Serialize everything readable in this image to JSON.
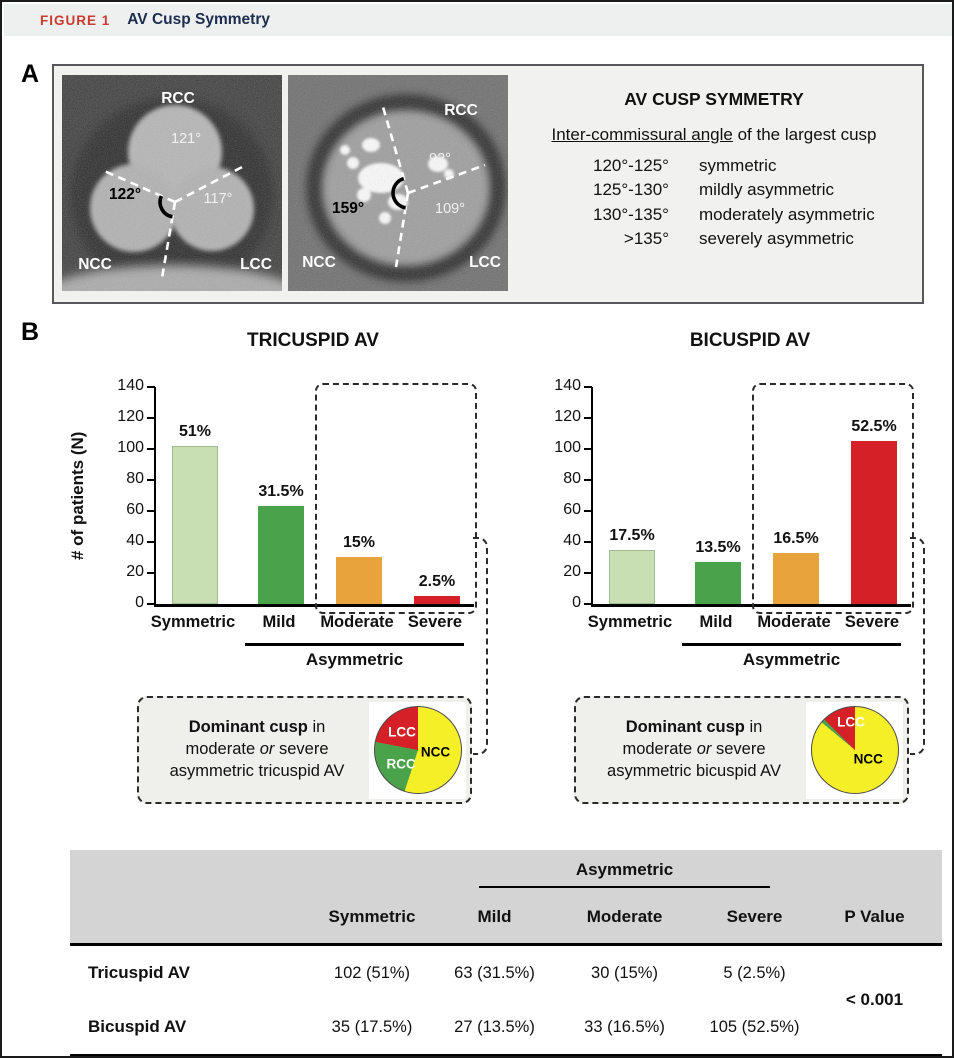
{
  "figure_header": {
    "label": "FIGURE 1",
    "title": "AV Cusp Symmetry"
  },
  "colors": {
    "figure_label_red": "#cb3a2f",
    "figure_title_navy": "#1e2c4f",
    "header_band": "#edf0ee",
    "panel_box_bg": "#f1f1ef",
    "table_header_bg": "#d4d4d4",
    "light_green": "#c7dfb2",
    "green": "#4aa34a",
    "orange": "#e8a33c",
    "red": "#d42026",
    "pie_yellow": "#f5ef27"
  },
  "panel_a": {
    "label": "A",
    "ct_images": [
      {
        "name": "tricuspid-ct",
        "top_label": "RCC",
        "bottom_left_label": "NCC",
        "bottom_right_label": "LCC",
        "angle_top": "121°",
        "angle_left": "122°",
        "angle_right": "117°"
      },
      {
        "name": "bicuspid-ct",
        "top_label": "RCC",
        "bottom_left_label": "NCC",
        "bottom_right_label": "LCC",
        "angle_top": "92°",
        "angle_left": "159°",
        "angle_right": "109°"
      }
    ],
    "definition": {
      "title": "AV CUSP SYMMETRY",
      "lead_underlined": "Inter-commissural angle",
      "lead_rest": " of the largest cusp",
      "rows": [
        {
          "range": "120°-125°",
          "meaning": "symmetric"
        },
        {
          "range": "125°-130°",
          "meaning": "mildly asymmetric"
        },
        {
          "range": "130°-135°",
          "meaning": "moderately asymmetric"
        },
        {
          "range": ">135°",
          "meaning": "severely asymmetric"
        }
      ]
    }
  },
  "panel_b": {
    "label": "B",
    "bracket_label": "Asymmetric"
  },
  "chart_data": [
    {
      "type": "bar",
      "title": "TRICUSPID AV",
      "ylabel": "# of patients (N)",
      "categories": [
        "Symmetric",
        "Mild",
        "Moderate",
        "Severe"
      ],
      "values": [
        102,
        63,
        30,
        5
      ],
      "value_labels": [
        "51%",
        "31.5%",
        "15%",
        "2.5%"
      ],
      "ylim": [
        0,
        140
      ],
      "yticks": [
        0,
        20,
        40,
        60,
        80,
        100,
        120,
        140
      ],
      "bar_colors": [
        "#c7dfb2",
        "#4aa34a",
        "#e8a33c",
        "#d42026"
      ],
      "highlighted_categories": [
        "Moderate",
        "Severe"
      ],
      "group_annotation": "Asymmetric",
      "grid": false
    },
    {
      "type": "bar",
      "title": "BICUSPID AV",
      "ylabel": "",
      "categories": [
        "Symmetric",
        "Mild",
        "Moderate",
        "Severe"
      ],
      "values": [
        35,
        27,
        33,
        105
      ],
      "value_labels": [
        "17.5%",
        "13.5%",
        "16.5%",
        "52.5%"
      ],
      "ylim": [
        0,
        140
      ],
      "yticks": [
        0,
        20,
        40,
        60,
        80,
        100,
        120,
        140
      ],
      "bar_colors": [
        "#c7dfb2",
        "#4aa34a",
        "#e8a33c",
        "#d42026"
      ],
      "highlighted_categories": [
        "Moderate",
        "Severe"
      ],
      "group_annotation": "Asymmetric",
      "grid": false
    },
    {
      "type": "pie",
      "caption_lines": [
        [
          {
            "text": "Dominant cusp",
            "bold": true
          },
          {
            "text": " in"
          }
        ],
        [
          {
            "text": "moderate "
          },
          {
            "text": "or",
            "italic": true
          },
          {
            "text": " severe"
          }
        ],
        [
          {
            "text": "asymmetric tricuspid AV"
          }
        ]
      ],
      "slices": [
        {
          "label": "NCC",
          "value": 55,
          "color": "#f5ef27",
          "label_color": "#000",
          "label_pos": [
            71,
            52
          ]
        },
        {
          "label": "RCC",
          "value": 23,
          "color": "#4aa34a",
          "label_color": "#fff",
          "label_pos": [
            31,
            66
          ]
        },
        {
          "label": "LCC",
          "value": 22,
          "color": "#d42026",
          "label_color": "#fff",
          "label_pos": [
            32,
            29
          ]
        }
      ]
    },
    {
      "type": "pie",
      "caption_lines": [
        [
          {
            "text": "Dominant cusp",
            "bold": true
          },
          {
            "text": " in"
          }
        ],
        [
          {
            "text": "moderate "
          },
          {
            "text": "or",
            "italic": true
          },
          {
            "text": " severe"
          }
        ],
        [
          {
            "text": "asymmetric bicuspid AV"
          }
        ]
      ],
      "slices": [
        {
          "label": "NCC",
          "value": 86,
          "color": "#f5ef27",
          "label_color": "#000",
          "label_pos": [
            66,
            61
          ]
        },
        {
          "label": "RCC",
          "value": 1.5,
          "color": "#4aa34a",
          "label_color": "#fff",
          "label_pos": null
        },
        {
          "label": "LCC",
          "value": 12.5,
          "color": "#d42026",
          "label_color": "#fff",
          "label_pos": [
            46,
            18
          ]
        }
      ]
    }
  ],
  "table": {
    "group_header": "Asymmetric",
    "columns": [
      "Symmetric",
      "Mild",
      "Moderate",
      "Severe",
      "P Value"
    ],
    "rows": [
      {
        "label": "Tricuspid AV",
        "values": [
          "102 (51%)",
          "63 (31.5%)",
          "30 (15%)",
          "5 (2.5%)"
        ]
      },
      {
        "label": "Bicuspid AV",
        "values": [
          "35 (17.5%)",
          "27 (13.5%)",
          "33 (16.5%)",
          "105 (52.5%)"
        ]
      }
    ],
    "p_value": "< 0.001"
  }
}
